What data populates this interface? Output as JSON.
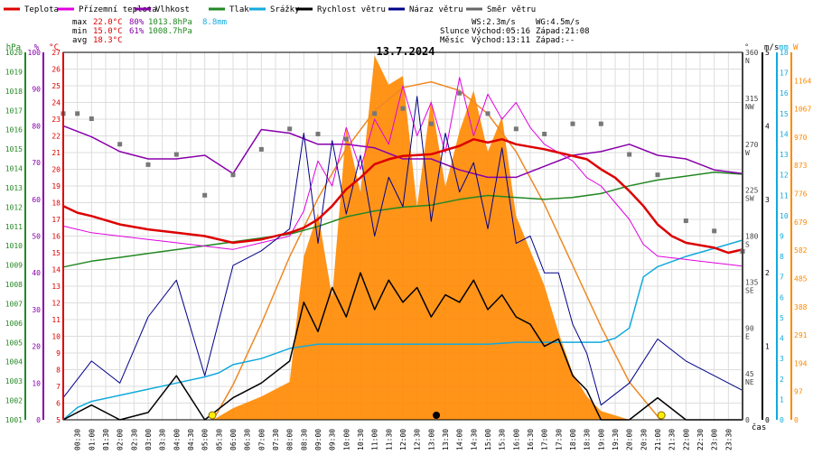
{
  "legend": [
    {
      "key": "teplota",
      "label": "Teplota",
      "color": "#dd0000"
    },
    {
      "key": "prizemni",
      "label": "Přízemní teplota",
      "color": "#e000e0"
    },
    {
      "key": "vlhkost",
      "label": "Vlhkost",
      "color": "#8800aa"
    },
    {
      "key": "tlak",
      "label": "Tlak",
      "color": "#228822"
    },
    {
      "key": "srazky",
      "label": "Srážky",
      "color": "#11aadd"
    },
    {
      "key": "rychlost",
      "label": "Rychlost větru",
      "color": "#000000"
    },
    {
      "key": "naraz",
      "label": "Náraz větru",
      "color": "#000088"
    },
    {
      "key": "smer",
      "label": "Směr větru",
      "color": "#666666"
    }
  ],
  "stats": {
    "max_label": "max",
    "min_label": "min",
    "avg_label": "avg",
    "max_temp": "22.0°C",
    "max_hum": "80%",
    "max_press": "1013.8hPa",
    "max_rain": "8.8mm",
    "min_temp": "15.0°C",
    "min_hum": "61%",
    "min_press": "1008.7hPa",
    "avg_temp": "18.3°C"
  },
  "info": {
    "ws": "WS:2.3m/s",
    "wg": "WG:4.5m/s",
    "slunce": "Slunce",
    "vychod_slunce": "Východ:05:16",
    "zapad_slunce": "Západ:21:08",
    "mesic": "Měsíc",
    "vychod_mesic": "Východ:13:11",
    "zapad_mesic": "Západ:--"
  },
  "colors": {
    "temp": "#dd0000",
    "ground": "#e000e0",
    "hum": "#8800aa",
    "press": "#228822",
    "rain": "#11aadd",
    "wind": "#000000",
    "gust": "#000088",
    "dir": "#777777",
    "solar": "#ff8800",
    "theory": "#ee8822",
    "grid": "#dddddd"
  },
  "chart_data": {
    "type": "line",
    "title": "13.7.2024",
    "xlabel": "čas",
    "x_ticks": [
      "00:30",
      "01:00",
      "01:30",
      "02:00",
      "02:30",
      "03:00",
      "03:30",
      "04:00",
      "04:30",
      "05:00",
      "05:30",
      "06:00",
      "06:30",
      "07:00",
      "07:30",
      "08:00",
      "08:30",
      "09:00",
      "09:30",
      "10:00",
      "10:30",
      "11:00",
      "11:30",
      "12:00",
      "12:30",
      "13:00",
      "13:30",
      "14:00",
      "14:30",
      "15:00",
      "15:30",
      "16:00",
      "16:30",
      "17:00",
      "17:30",
      "18:00",
      "18:30",
      "19:00",
      "19:30",
      "20:00",
      "20:30",
      "21:00",
      "21:30",
      "22:00",
      "22:30",
      "23:00",
      "23:30"
    ],
    "axes": {
      "hpa": {
        "label": "hPa",
        "min": 1001,
        "max": 1020,
        "ticks": [
          1001,
          1002,
          1003,
          1004,
          1005,
          1006,
          1007,
          1008,
          1009,
          1010,
          1011,
          1012,
          1013,
          1014,
          1015,
          1016,
          1017,
          1018,
          1019,
          1020
        ]
      },
      "pct": {
        "label": "%",
        "min": 0,
        "max": 100,
        "ticks": [
          0,
          10,
          20,
          30,
          40,
          50,
          60,
          70,
          80,
          90,
          100
        ]
      },
      "temp": {
        "label": "°C",
        "min": 5,
        "max": 27,
        "ticks": [
          5,
          6,
          7,
          8,
          9,
          10,
          11,
          12,
          13,
          14,
          15,
          16,
          17,
          18,
          19,
          20,
          21,
          22,
          23,
          24,
          25,
          26,
          27
        ]
      },
      "deg": {
        "label": "°",
        "min": 0,
        "max": 360,
        "ticks": [
          0,
          45,
          90,
          135,
          180,
          225,
          270,
          315,
          360
        ],
        "dir_labels": [
          "",
          "NE",
          "E",
          "SE",
          "S",
          "SW",
          "W",
          "NW",
          "N"
        ]
      },
      "ms": {
        "label": "m/s",
        "min": 0,
        "max": 5,
        "ticks": [
          0,
          1,
          2,
          3,
          4,
          5
        ]
      },
      "mm": {
        "label": "mm",
        "min": 0,
        "max": 18,
        "ticks": [
          0,
          1,
          2,
          3,
          4,
          5,
          6,
          7,
          8,
          9,
          10,
          11,
          12,
          13,
          14,
          15,
          16,
          17,
          18
        ]
      },
      "w": {
        "label": "W",
        "min": 0,
        "max": 1261,
        "ticks": [
          0,
          97,
          194,
          291,
          388,
          485,
          582,
          679,
          776,
          873,
          970,
          1067,
          1164
        ]
      }
    },
    "series": {
      "teplota": {
        "hours": [
          0,
          0.5,
          1,
          2,
          3,
          4,
          5,
          6,
          7,
          8,
          8.5,
          9,
          9.5,
          10,
          10.5,
          11,
          11.5,
          12,
          13,
          14,
          14.5,
          15,
          15.5,
          16,
          17,
          17.5,
          18,
          18.5,
          19,
          19.5,
          20,
          20.5,
          21,
          21.5,
          22,
          23,
          23.5,
          24
        ],
        "values": [
          17.8,
          17.4,
          17.2,
          16.7,
          16.4,
          16.2,
          16.0,
          15.6,
          15.8,
          16.2,
          16.5,
          17.0,
          17.8,
          18.8,
          19.5,
          20.3,
          20.6,
          20.8,
          20.9,
          21.4,
          21.8,
          21.6,
          21.8,
          21.5,
          21.2,
          21.0,
          20.8,
          20.6,
          20.0,
          19.5,
          18.7,
          17.8,
          16.7,
          16.0,
          15.6,
          15.3,
          15.0,
          15.2
        ]
      },
      "prizemni": {
        "hours": [
          0,
          1,
          2,
          3,
          4,
          5,
          6,
          7,
          8,
          8.5,
          9,
          9.5,
          10,
          10.5,
          11,
          11.5,
          12,
          12.5,
          13,
          13.5,
          14,
          14.5,
          15,
          15.5,
          16,
          16.5,
          17,
          17.5,
          18,
          18.5,
          19,
          19.5,
          20,
          20.5,
          21,
          22,
          23,
          24
        ],
        "values": [
          16.6,
          16.2,
          16.0,
          15.8,
          15.6,
          15.4,
          15.2,
          15.6,
          16.0,
          17.5,
          20.5,
          19.0,
          22.5,
          20.0,
          23.0,
          21.5,
          25.0,
          22.0,
          24.0,
          21.0,
          25.5,
          22.0,
          24.5,
          23.0,
          24.0,
          22.5,
          21.5,
          21.0,
          20.5,
          19.5,
          19.0,
          18.0,
          17.0,
          15.5,
          14.8,
          14.6,
          14.4,
          14.2
        ]
      },
      "vlhkost": {
        "hours": [
          0,
          1,
          2,
          3,
          4,
          5,
          6,
          7,
          8,
          9,
          10,
          11,
          12,
          13,
          14,
          15,
          16,
          17,
          18,
          19,
          20,
          21,
          22,
          23,
          24
        ],
        "values": [
          80,
          77,
          73,
          71,
          71,
          72,
          67,
          79,
          78,
          75,
          75,
          74,
          71,
          71,
          68,
          66,
          66,
          69,
          72,
          73,
          75,
          72,
          71,
          68,
          67
        ]
      },
      "tlak": {
        "hours": [
          0,
          1,
          2,
          3,
          4,
          5,
          6,
          7,
          8,
          9,
          10,
          11,
          12,
          13,
          14,
          15,
          16,
          17,
          18,
          19,
          20,
          21,
          22,
          23,
          24
        ],
        "values": [
          1008.9,
          1009.2,
          1009.4,
          1009.6,
          1009.8,
          1010.0,
          1010.2,
          1010.4,
          1010.6,
          1011.0,
          1011.5,
          1011.8,
          1012.0,
          1012.1,
          1012.4,
          1012.6,
          1012.5,
          1012.4,
          1012.5,
          1012.7,
          1013.1,
          1013.4,
          1013.6,
          1013.8,
          1013.7
        ]
      },
      "srazky": {
        "hours": [
          0,
          0.5,
          1,
          2,
          3,
          4,
          5,
          5.5,
          6,
          7,
          8,
          9,
          10,
          11,
          12,
          13,
          14,
          15,
          16,
          17,
          18,
          19,
          19.5,
          20,
          20.5,
          21,
          22,
          23,
          24
        ],
        "values": [
          0,
          0.6,
          0.9,
          1.2,
          1.5,
          1.8,
          2.1,
          2.3,
          2.7,
          3.0,
          3.5,
          3.7,
          3.7,
          3.7,
          3.7,
          3.7,
          3.7,
          3.7,
          3.8,
          3.8,
          3.8,
          3.8,
          4.0,
          4.5,
          7.0,
          7.5,
          8.0,
          8.4,
          8.8
        ]
      },
      "rychlost": {
        "hours": [
          0,
          1,
          2,
          3,
          4,
          5,
          6,
          7,
          8,
          8.5,
          9,
          9.5,
          10,
          10.5,
          11,
          11.5,
          12,
          12.5,
          13,
          13.5,
          14,
          14.5,
          15,
          15.5,
          16,
          16.5,
          17,
          17.5,
          18,
          18.5,
          19,
          20,
          21,
          22,
          23,
          24
        ],
        "values": [
          0,
          0.2,
          0,
          0.1,
          0.6,
          0,
          0.3,
          0.5,
          0.8,
          1.6,
          1.2,
          1.8,
          1.4,
          2.0,
          1.5,
          1.9,
          1.6,
          1.8,
          1.4,
          1.7,
          1.6,
          1.9,
          1.5,
          1.7,
          1.4,
          1.3,
          1.0,
          1.1,
          0.6,
          0.4,
          0,
          0,
          0.3,
          0,
          0,
          0
        ]
      },
      "naraz": {
        "hours": [
          0,
          1,
          2,
          3,
          4,
          5,
          6,
          7,
          8,
          8.5,
          9,
          9.5,
          10,
          10.5,
          11,
          11.5,
          12,
          12.5,
          13,
          13.5,
          14,
          14.5,
          15,
          15.5,
          16,
          16.5,
          17,
          17.5,
          18,
          18.5,
          19,
          20,
          21,
          22,
          23,
          24
        ],
        "values": [
          0.3,
          0.8,
          0.5,
          1.4,
          1.9,
          0.6,
          2.1,
          2.3,
          2.6,
          3.9,
          2.4,
          3.8,
          2.8,
          3.6,
          2.5,
          3.3,
          2.9,
          4.4,
          2.7,
          3.9,
          3.1,
          3.5,
          2.6,
          3.7,
          2.4,
          2.5,
          2.0,
          2.0,
          1.3,
          0.9,
          0.2,
          0.5,
          1.1,
          0.8,
          0.6,
          0.4
        ]
      },
      "smer": {
        "hours": [
          0,
          0.5,
          1,
          2,
          3,
          4,
          5,
          6,
          7,
          8,
          9,
          10,
          11,
          12,
          13,
          14,
          15,
          16,
          17,
          18,
          19,
          20,
          21,
          22,
          23,
          24
        ],
        "values": [
          300,
          300,
          295,
          270,
          250,
          260,
          220,
          240,
          265,
          285,
          280,
          275,
          300,
          305,
          290,
          320,
          300,
          285,
          280,
          290,
          290,
          260,
          240,
          195,
          185,
          165
        ]
      },
      "solar": {
        "hours": [
          0,
          5.3,
          6,
          7,
          8,
          8.5,
          9,
          9.5,
          10,
          10.5,
          11,
          11.5,
          12,
          12.5,
          13,
          13.5,
          14,
          14.5,
          15,
          15.5,
          16,
          16.5,
          17,
          17.5,
          18,
          18.5,
          19,
          20,
          24
        ],
        "values": [
          0,
          0,
          40,
          80,
          130,
          560,
          710,
          420,
          1000,
          780,
          1250,
          1150,
          1180,
          730,
          1100,
          800,
          990,
          1130,
          920,
          1040,
          700,
          580,
          460,
          300,
          160,
          80,
          30,
          0,
          0
        ]
      },
      "theory": {
        "hours": [
          5.3,
          6,
          7,
          8,
          9,
          10,
          11,
          12,
          13,
          14,
          15,
          16,
          17,
          18,
          19,
          20,
          21.1
        ],
        "values": [
          0,
          120,
          330,
          560,
          760,
          930,
          1060,
          1140,
          1160,
          1130,
          1050,
          920,
          740,
          530,
          320,
          130,
          0
        ]
      }
    },
    "sunrise": "05:16",
    "sunset": "21:08",
    "moonrise": "13:11"
  }
}
